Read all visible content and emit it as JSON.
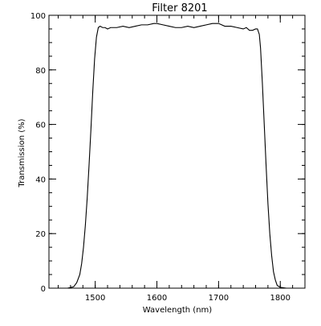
{
  "chart_data": {
    "type": "line",
    "title": "Filter 8201",
    "xlabel": "Wavelength (nm)",
    "ylabel": "Transmission (%)",
    "xlim": [
      1425,
      1840
    ],
    "ylim": [
      0,
      100
    ],
    "x_ticks": [
      1500,
      1600,
      1700,
      1800
    ],
    "x_tick_labels": [
      "1500",
      "1600",
      "1700",
      "1800"
    ],
    "y_ticks": [
      0,
      20,
      40,
      60,
      80,
      100
    ],
    "y_tick_labels": [
      "0",
      "20",
      "40",
      "60",
      "80",
      "100"
    ],
    "x_minor_step": 20,
    "y_minor_step": 5,
    "grid": false,
    "legend": "none",
    "line_color": "#000000",
    "series": [
      {
        "x": [
          1430,
          1455,
          1465,
          1470,
          1475,
          1478,
          1481,
          1484,
          1487,
          1490,
          1493,
          1496,
          1499,
          1502,
          1505,
          1508,
          1512,
          1516,
          1520,
          1525,
          1535,
          1545,
          1555,
          1565,
          1575,
          1585,
          1595,
          1600,
          1610,
          1620,
          1630,
          1640,
          1650,
          1660,
          1670,
          1680,
          1690,
          1700,
          1710,
          1720,
          1730,
          1740,
          1745,
          1750,
          1755,
          1760,
          1763,
          1766,
          1768,
          1771,
          1774,
          1777,
          1780,
          1783,
          1786,
          1789,
          1792,
          1795,
          1800,
          1810,
          1820,
          1838
        ],
        "y": [
          0,
          0,
          0.5,
          2,
          5,
          9,
          15,
          23,
          33,
          45,
          58,
          72,
          84,
          92,
          95.5,
          96,
          95.5,
          95.5,
          95,
          95.5,
          95.5,
          96,
          95.5,
          96,
          96.5,
          96.5,
          97,
          97,
          96.5,
          96,
          95.5,
          95.5,
          96,
          95.5,
          96,
          96.5,
          97,
          97,
          96,
          96,
          95.5,
          95,
          95.5,
          94.5,
          94.5,
          95,
          95,
          93,
          88,
          75,
          60,
          45,
          31,
          20,
          12,
          6,
          3,
          1,
          0.3,
          0,
          0,
          0
        ]
      }
    ]
  }
}
